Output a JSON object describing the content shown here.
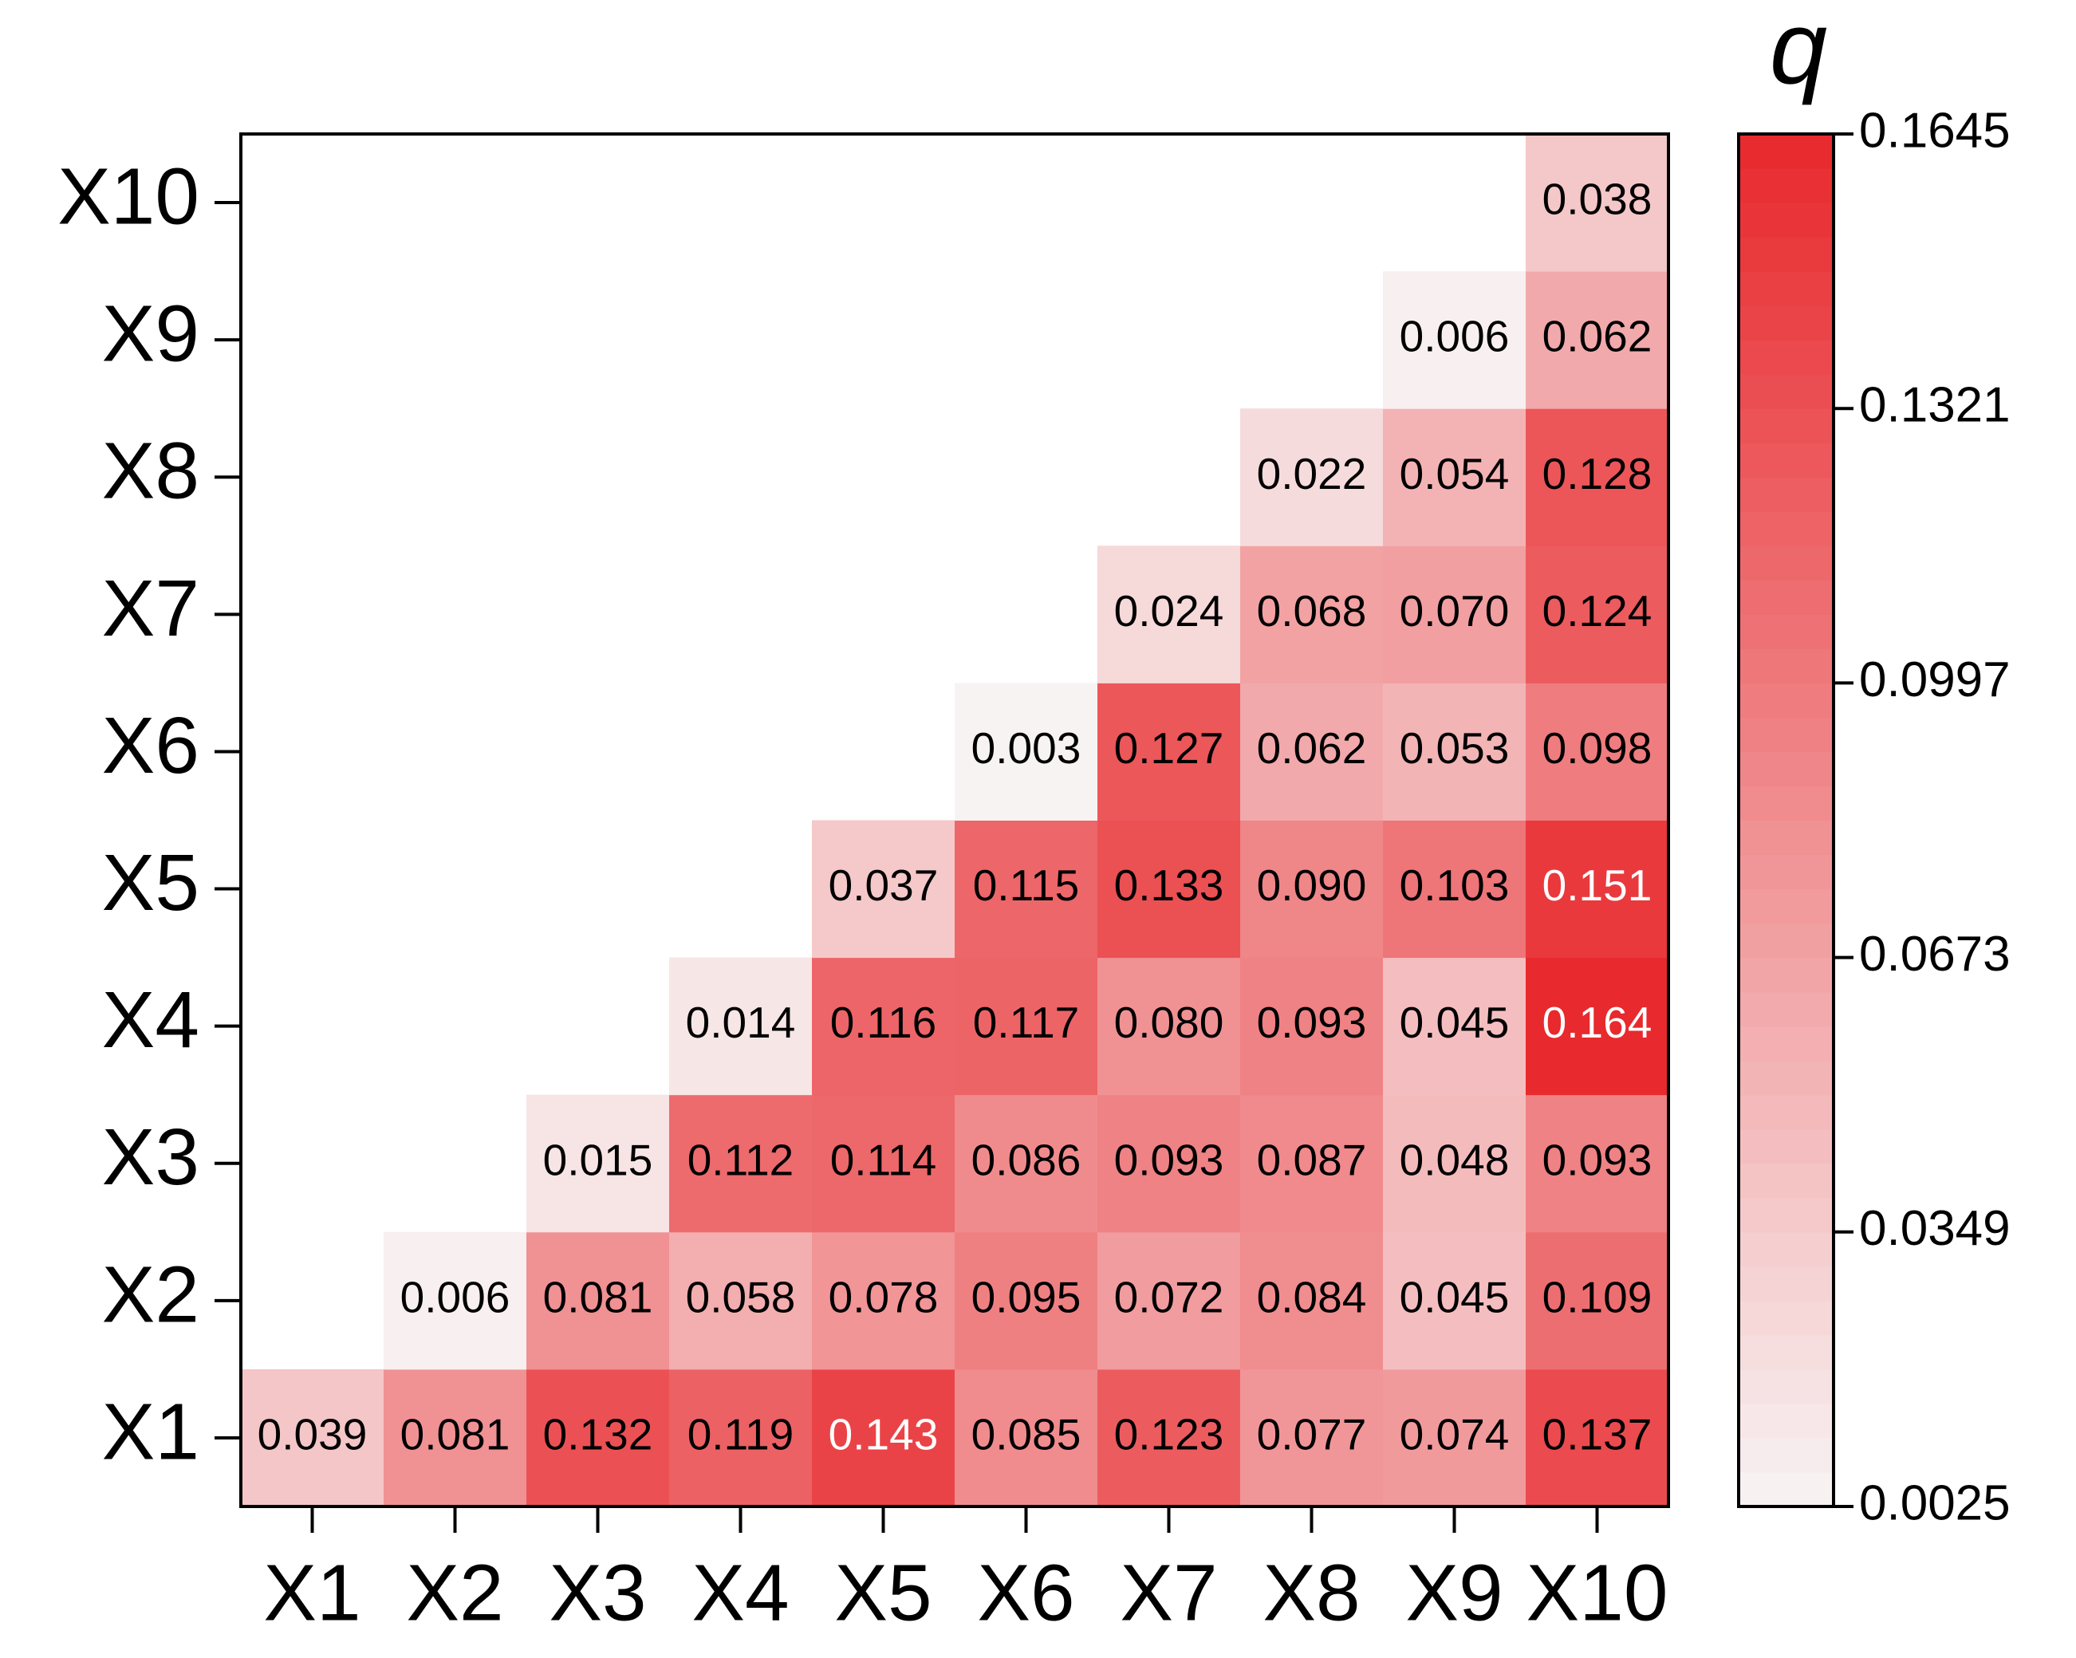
{
  "chart_data": {
    "type": "heatmap",
    "x_categories": [
      "X1",
      "X2",
      "X3",
      "X4",
      "X5",
      "X6",
      "X7",
      "X8",
      "X9",
      "X10"
    ],
    "y_categories": [
      "X1",
      "X2",
      "X3",
      "X4",
      "X5",
      "X6",
      "X7",
      "X8",
      "X9",
      "X10"
    ],
    "values": [
      [
        0.039,
        0.081,
        0.132,
        0.119,
        0.143,
        0.085,
        0.123,
        0.077,
        0.074,
        0.137
      ],
      [
        null,
        0.006,
        0.081,
        0.058,
        0.078,
        0.095,
        0.072,
        0.084,
        0.045,
        0.109
      ],
      [
        null,
        null,
        0.015,
        0.112,
        0.114,
        0.086,
        0.093,
        0.087,
        0.048,
        0.093
      ],
      [
        null,
        null,
        null,
        0.014,
        0.116,
        0.117,
        0.08,
        0.093,
        0.045,
        0.164
      ],
      [
        null,
        null,
        null,
        null,
        0.037,
        0.115,
        0.133,
        0.09,
        0.103,
        0.151
      ],
      [
        null,
        null,
        null,
        null,
        null,
        0.003,
        0.127,
        0.062,
        0.053,
        0.098
      ],
      [
        null,
        null,
        null,
        null,
        null,
        null,
        0.024,
        0.068,
        0.07,
        0.124
      ],
      [
        null,
        null,
        null,
        null,
        null,
        null,
        null,
        0.022,
        0.054,
        0.128
      ],
      [
        null,
        null,
        null,
        null,
        null,
        null,
        null,
        null,
        0.006,
        0.062
      ],
      [
        null,
        null,
        null,
        null,
        null,
        null,
        null,
        null,
        null,
        0.038
      ]
    ],
    "value_labels": [
      [
        "0.039",
        "0.081",
        "0.132",
        "0.119",
        "0.143",
        "0.085",
        "0.123",
        "0.077",
        "0.074",
        "0.137"
      ],
      [
        null,
        "0.006",
        "0.081",
        "0.058",
        "0.078",
        "0.095",
        "0.072",
        "0.084",
        "0.045",
        "0.109"
      ],
      [
        null,
        null,
        "0.015",
        "0.112",
        "0.114",
        "0.086",
        "0.093",
        "0.087",
        "0.048",
        "0.093"
      ],
      [
        null,
        null,
        null,
        "0.014",
        "0.116",
        "0.117",
        "0.080",
        "0.093",
        "0.045",
        "0.164"
      ],
      [
        null,
        null,
        null,
        null,
        "0.037",
        "0.115",
        "0.133",
        "0.090",
        "0.103",
        "0.151"
      ],
      [
        null,
        null,
        null,
        null,
        null,
        "0.003",
        "0.127",
        "0.062",
        "0.053",
        "0.098"
      ],
      [
        null,
        null,
        null,
        null,
        null,
        null,
        "0.024",
        "0.068",
        "0.070",
        "0.124"
      ],
      [
        null,
        null,
        null,
        null,
        null,
        null,
        null,
        "0.022",
        "0.054",
        "0.128"
      ],
      [
        null,
        null,
        null,
        null,
        null,
        null,
        null,
        null,
        "0.006",
        "0.062"
      ],
      [
        null,
        null,
        null,
        null,
        null,
        null,
        null,
        null,
        null,
        "0.038"
      ]
    ],
    "colorbar_title": "q",
    "zlim": [
      0.0025,
      0.1645
    ],
    "zticks": [
      0.0025,
      0.0349,
      0.0673,
      0.0997,
      0.1321,
      0.1645
    ],
    "colormap": [
      "#f8f4f4",
      "#e8282c"
    ]
  }
}
